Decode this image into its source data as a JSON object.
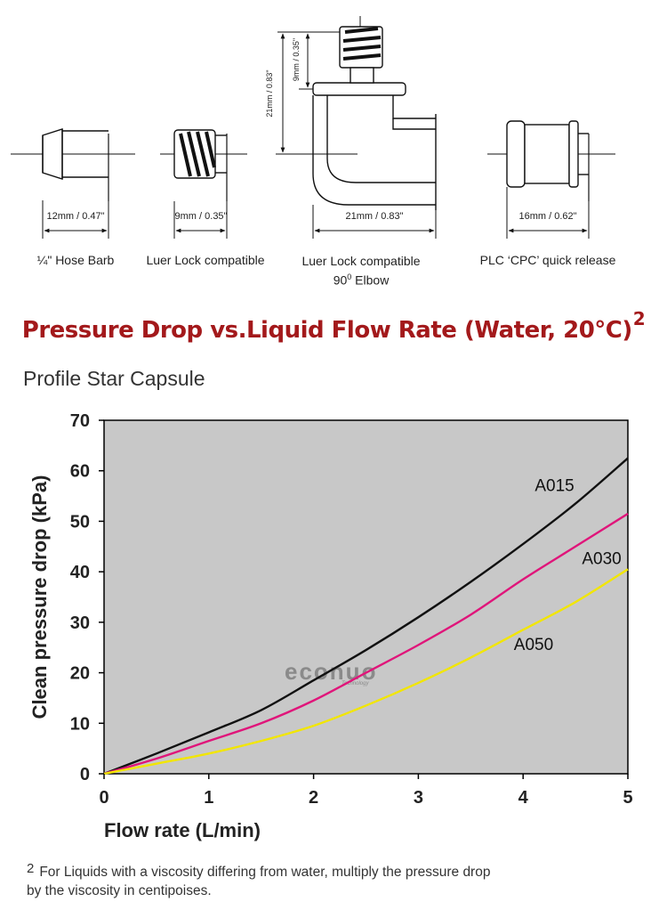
{
  "fittings": [
    {
      "dimension": "12mm / 0.47\"",
      "caption": "¼\" Hose Barb"
    },
    {
      "dimension": "9mm / 0.35\"",
      "caption": "Luer Lock compatible"
    },
    {
      "dimension": "21mm / 0.83\"",
      "caption_line1": "Luer Lock compatible",
      "caption_line2_num": "90",
      "caption_line2_deg": "0",
      "caption_line2_word": "Elbow",
      "height_total": "21mm / 0.83\"",
      "height_top": "9mm / 0.35\""
    },
    {
      "dimension": "16mm / 0.62\"",
      "caption": "PLC ‘CPC’ quick release"
    }
  ],
  "title": "Pressure Drop vs.Liquid Flow Rate (Water, 20°C)",
  "title_footnote_mark": "2",
  "subtitle": "Profile Star Capsule",
  "watermark": {
    "brand": "econuo",
    "sub": "Technology"
  },
  "chart_data": {
    "type": "line",
    "xlabel": "Flow rate (L/min)",
    "ylabel": "Clean pressure drop (kPa)",
    "xlim": [
      0,
      5
    ],
    "ylim": [
      0,
      70
    ],
    "xticks": [
      0,
      1,
      2,
      3,
      4,
      5
    ],
    "yticks": [
      0,
      10,
      20,
      30,
      40,
      50,
      60,
      70
    ],
    "grid": false,
    "background": "#c8c8c8",
    "series": [
      {
        "name": "A015",
        "color": "#111111",
        "label_at": [
          4.3,
          56
        ],
        "points": [
          [
            0,
            0
          ],
          [
            0.5,
            4
          ],
          [
            1,
            8.2
          ],
          [
            1.5,
            12.6
          ],
          [
            2,
            18.5
          ],
          [
            2.5,
            24.5
          ],
          [
            3,
            31
          ],
          [
            3.5,
            38
          ],
          [
            4,
            45.5
          ],
          [
            4.5,
            53.5
          ],
          [
            5,
            62.5
          ]
        ]
      },
      {
        "name": "A030",
        "color": "#e0157a",
        "label_at": [
          4.75,
          41.5
        ],
        "points": [
          [
            0,
            0
          ],
          [
            0.5,
            3
          ],
          [
            1,
            6.5
          ],
          [
            1.5,
            10
          ],
          [
            2,
            14.5
          ],
          [
            2.5,
            20
          ],
          [
            3,
            25.5
          ],
          [
            3.5,
            31.5
          ],
          [
            4,
            38.5
          ],
          [
            4.5,
            45
          ],
          [
            5,
            51.5
          ]
        ]
      },
      {
        "name": "A050",
        "color": "#f2e600",
        "label_at": [
          4.1,
          24.5
        ],
        "points": [
          [
            0,
            0
          ],
          [
            0.5,
            2
          ],
          [
            1,
            4
          ],
          [
            1.5,
            6.5
          ],
          [
            2,
            9.5
          ],
          [
            2.5,
            13.5
          ],
          [
            3,
            18
          ],
          [
            3.5,
            23
          ],
          [
            4,
            28.5
          ],
          [
            4.5,
            34
          ],
          [
            5,
            40.5
          ]
        ]
      }
    ]
  },
  "footnote": {
    "mark": "2",
    "line1": "For Liquids with a viscosity differing from water, multiply the pressure drop",
    "line2": "by the viscosity in centipoises."
  }
}
